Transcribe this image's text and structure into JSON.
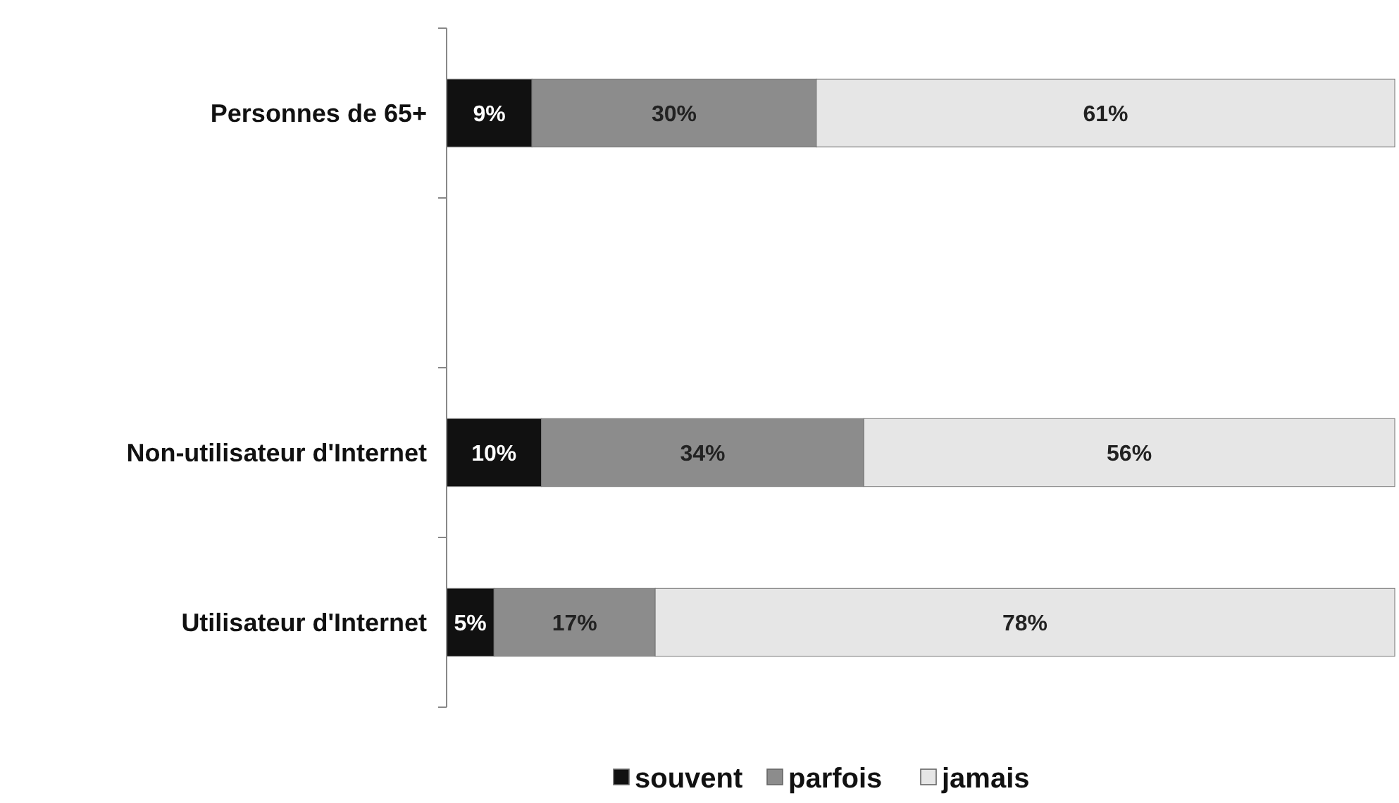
{
  "chart_data": {
    "type": "bar",
    "orientation": "horizontal",
    "stacked": true,
    "categories": [
      "Personnes de 65+",
      null,
      "Non-utilisateur d'Internet",
      "Utilisateur d'Internet"
    ],
    "series": [
      {
        "name": "souvent",
        "color": "#111111",
        "values": [
          9,
          null,
          10,
          5
        ],
        "value_labels": [
          "9%",
          null,
          "10%",
          "5%"
        ]
      },
      {
        "name": "parfois",
        "color": "#8c8c8c",
        "values": [
          30,
          null,
          34,
          17
        ],
        "value_labels": [
          "30%",
          null,
          "34%",
          "17%"
        ]
      },
      {
        "name": "jamais",
        "color": "#e6e6e6",
        "values": [
          61,
          null,
          56,
          78
        ],
        "value_labels": [
          "61%",
          null,
          "56%",
          "78%"
        ]
      }
    ],
    "xlim": [
      0,
      100
    ],
    "tick_labels": "y",
    "legend": "bottom"
  }
}
